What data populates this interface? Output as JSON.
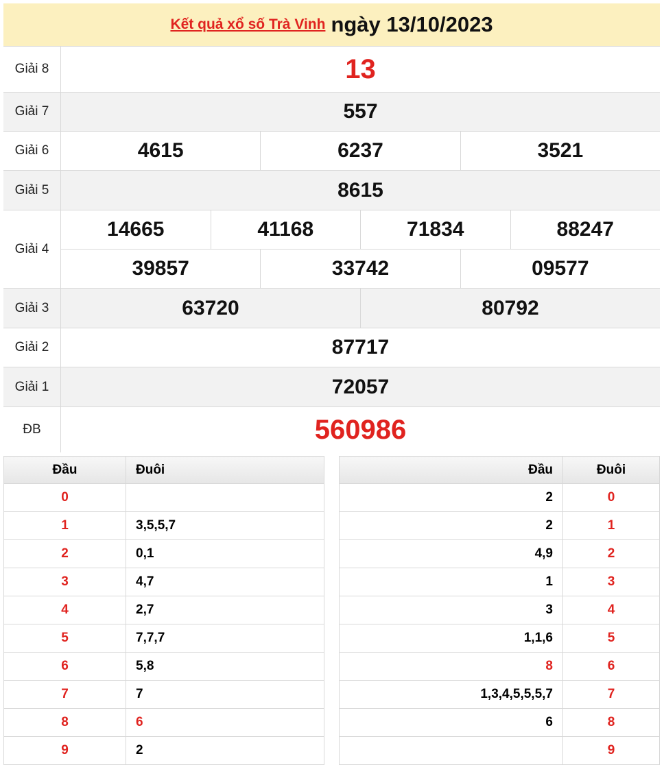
{
  "header": {
    "link": "Kết quả xổ số Trà Vinh",
    "date": "ngày 13/10/2023"
  },
  "prizes": [
    {
      "label": "Giải 8",
      "rows": [
        [
          "13"
        ]
      ],
      "highlight": true
    },
    {
      "label": "Giải 7",
      "rows": [
        [
          "557"
        ]
      ]
    },
    {
      "label": "Giải 6",
      "rows": [
        [
          "4615",
          "6237",
          "3521"
        ]
      ]
    },
    {
      "label": "Giải 5",
      "rows": [
        [
          "8615"
        ]
      ]
    },
    {
      "label": "Giải 4",
      "rows": [
        [
          "14665",
          "41168",
          "71834",
          "88247"
        ],
        [
          "39857",
          "33742",
          "09577"
        ]
      ]
    },
    {
      "label": "Giải 3",
      "rows": [
        [
          "63720",
          "80792"
        ]
      ]
    },
    {
      "label": "Giải 2",
      "rows": [
        [
          "87717"
        ]
      ]
    },
    {
      "label": "Giải 1",
      "rows": [
        [
          "72057"
        ]
      ]
    },
    {
      "label": "ĐB",
      "rows": [
        [
          "560986"
        ]
      ],
      "highlight": true
    }
  ],
  "dau_table": {
    "headers": [
      "Đầu",
      "Đuôi"
    ],
    "rows": [
      [
        "0",
        ""
      ],
      [
        "1",
        "3,5,5,7"
      ],
      [
        "2",
        "0,1"
      ],
      [
        "3",
        "4,7"
      ],
      [
        "4",
        "2,7"
      ],
      [
        "5",
        "7,7,7"
      ],
      [
        "6",
        "5,8"
      ],
      [
        "7",
        "7"
      ],
      [
        "8",
        "6"
      ],
      [
        "9",
        "2"
      ]
    ],
    "red_value_row": 8
  },
  "duoi_table": {
    "headers": [
      "Đầu",
      "Đuôi"
    ],
    "rows": [
      [
        "2",
        "0"
      ],
      [
        "2",
        "1"
      ],
      [
        "4,9",
        "2"
      ],
      [
        "1",
        "3"
      ],
      [
        "3",
        "4"
      ],
      [
        "1,1,6",
        "5"
      ],
      [
        "8",
        "6"
      ],
      [
        "1,3,4,5,5,5,7",
        "7"
      ],
      [
        "6",
        "8"
      ],
      [
        "",
        "9"
      ]
    ],
    "red_value_row": 6
  },
  "colors": {
    "accent": "#e0231f",
    "header_bg": "#fcf0bf"
  }
}
